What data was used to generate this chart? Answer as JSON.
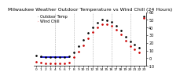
{
  "title": "Milwaukee Weather Outdoor Temperature vs Wind Chill (24 Hours)",
  "legend_outdoor": "Outdoor Temp",
  "legend_windchill": "Wind Chill",
  "hours": [
    0,
    1,
    2,
    3,
    4,
    5,
    6,
    7,
    8,
    9,
    10,
    11,
    12,
    13,
    14,
    15,
    16,
    17,
    18,
    19,
    20,
    21,
    22,
    23
  ],
  "outdoor_temp": [
    3,
    2,
    1,
    1,
    1,
    1,
    1,
    2,
    8,
    16,
    24,
    33,
    40,
    46,
    50,
    49,
    47,
    42,
    36,
    28,
    22,
    18,
    14,
    55
  ],
  "wind_chill": [
    -5,
    -6,
    -7,
    -7,
    -7,
    -7,
    -7,
    -6,
    1,
    9,
    17,
    26,
    34,
    40,
    44,
    44,
    42,
    37,
    31,
    23,
    16,
    12,
    8,
    52
  ],
  "blue_line_y": 1,
  "blue_line_x_start": 1,
  "blue_line_x_end": 7,
  "outdoor_color": "#000000",
  "windchill_color": "#cc0000",
  "blue_color": "#0000cc",
  "grid_color": "#aaaaaa",
  "bg_color": "#ffffff",
  "ylim": [
    -10,
    60
  ],
  "xlim": [
    -0.5,
    23.5
  ],
  "grid_x_positions": [
    4,
    8,
    12,
    16,
    20
  ],
  "title_fontsize": 4.5,
  "legend_fontsize": 3.5,
  "tick_fontsize": 3.2,
  "ytick_fontsize": 3.5,
  "yticks": [
    -10,
    0,
    10,
    20,
    30,
    40,
    50,
    60
  ],
  "xticks": [
    0,
    1,
    2,
    3,
    4,
    5,
    6,
    7,
    8,
    9,
    10,
    11,
    12,
    13,
    14,
    15,
    16,
    17,
    18,
    19,
    20,
    21,
    22,
    23
  ]
}
